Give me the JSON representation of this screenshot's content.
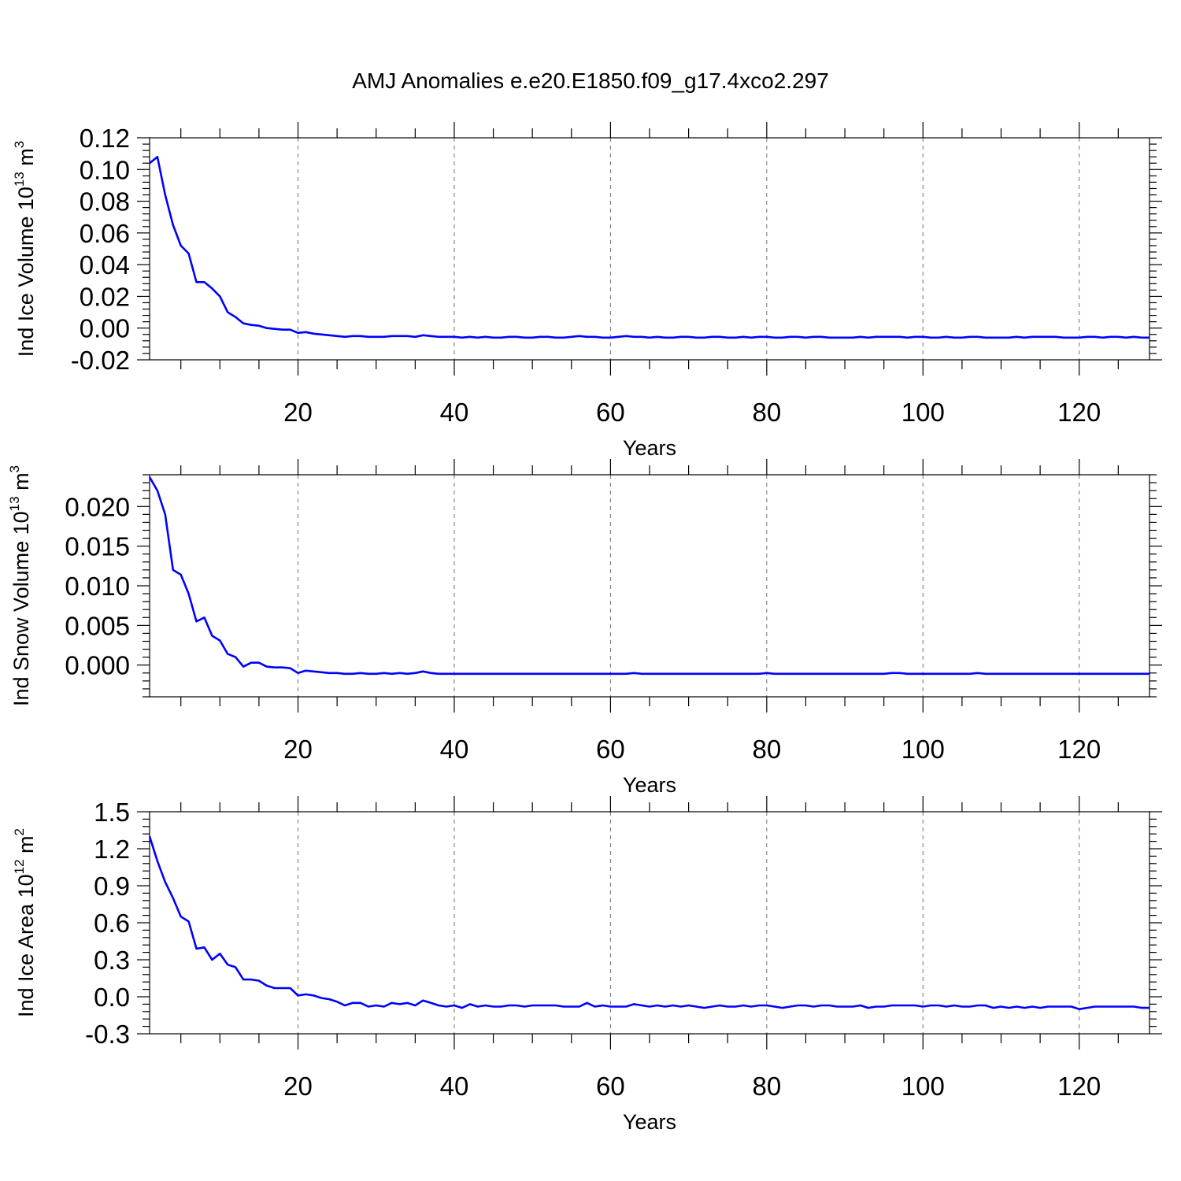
{
  "title": "AMJ Anomalies e.e20.E1850.f09_g17.4xco2.297",
  "chart_data": [
    {
      "type": "line",
      "ylabel": {
        "prefix": "Ind Ice Volume 10",
        "exp": "13",
        "unit": " m",
        "unit_exp": "3"
      },
      "xlabel": "Years",
      "xlim": [
        1,
        129
      ],
      "ylim": [
        -0.02,
        0.12
      ],
      "xticks": [
        20,
        40,
        60,
        80,
        100,
        120
      ],
      "xtick_labels": [
        "20",
        "40",
        "60",
        "80",
        "100",
        "120"
      ],
      "yticks": [
        -0.02,
        0.0,
        0.02,
        0.04,
        0.06,
        0.08,
        0.1,
        0.12
      ],
      "ytick_labels": [
        "-0.02",
        "0.00",
        "0.02",
        "0.04",
        "0.06",
        "0.08",
        "0.10",
        "0.12"
      ],
      "grid_x": true,
      "series": [
        {
          "color": "#0000ff",
          "x_start": 1,
          "values": [
            0.104,
            0.108,
            0.084,
            0.065,
            0.052,
            0.047,
            0.029,
            0.029,
            0.025,
            0.02,
            0.01,
            0.007,
            0.003,
            0.002,
            0.0015,
            0.0,
            -0.0005,
            -0.001,
            -0.001,
            -0.003,
            -0.0025,
            -0.0035,
            -0.004,
            -0.0045,
            -0.005,
            -0.0055,
            -0.005,
            -0.005,
            -0.0055,
            -0.0055,
            -0.0055,
            -0.005,
            -0.005,
            -0.005,
            -0.0055,
            -0.0045,
            -0.005,
            -0.0055,
            -0.0055,
            -0.0055,
            -0.006,
            -0.0055,
            -0.006,
            -0.0055,
            -0.006,
            -0.006,
            -0.0055,
            -0.0055,
            -0.006,
            -0.006,
            -0.0055,
            -0.0055,
            -0.006,
            -0.006,
            -0.0055,
            -0.005,
            -0.0055,
            -0.0055,
            -0.006,
            -0.006,
            -0.0055,
            -0.005,
            -0.0055,
            -0.0055,
            -0.006,
            -0.0055,
            -0.006,
            -0.006,
            -0.0055,
            -0.0055,
            -0.006,
            -0.006,
            -0.0055,
            -0.0055,
            -0.006,
            -0.006,
            -0.0055,
            -0.006,
            -0.0055,
            -0.0055,
            -0.006,
            -0.006,
            -0.0055,
            -0.0055,
            -0.006,
            -0.0055,
            -0.0055,
            -0.006,
            -0.006,
            -0.006,
            -0.006,
            -0.0055,
            -0.006,
            -0.0055,
            -0.0055,
            -0.0055,
            -0.0055,
            -0.006,
            -0.0055,
            -0.0055,
            -0.006,
            -0.006,
            -0.0055,
            -0.006,
            -0.006,
            -0.0055,
            -0.0055,
            -0.006,
            -0.006,
            -0.006,
            -0.006,
            -0.0055,
            -0.006,
            -0.0055,
            -0.0055,
            -0.0055,
            -0.0055,
            -0.006,
            -0.006,
            -0.006,
            -0.0055,
            -0.0055,
            -0.006,
            -0.0055,
            -0.0055,
            -0.006,
            -0.0055,
            -0.006,
            -0.006
          ]
        }
      ]
    },
    {
      "type": "line",
      "ylabel": {
        "prefix": "Ind Snow Volume 10",
        "exp": "13",
        "unit": " m",
        "unit_exp": "3"
      },
      "xlabel": "Years",
      "xlim": [
        1,
        129
      ],
      "ylim": [
        -0.004,
        0.024
      ],
      "xticks": [
        20,
        40,
        60,
        80,
        100,
        120
      ],
      "xtick_labels": [
        "20",
        "40",
        "60",
        "80",
        "100",
        "120"
      ],
      "yticks": [
        0.0,
        0.005,
        0.01,
        0.015,
        0.02
      ],
      "ytick_labels": [
        "0.000",
        "0.005",
        "0.010",
        "0.015",
        "0.020"
      ],
      "grid_x": true,
      "series": [
        {
          "color": "#0000ff",
          "x_start": 1,
          "values": [
            0.0237,
            0.022,
            0.019,
            0.012,
            0.0114,
            0.009,
            0.0055,
            0.006,
            0.0037,
            0.0031,
            0.0014,
            0.001,
            -0.0002,
            0.0003,
            0.0003,
            -0.0002,
            -0.0003,
            -0.0003,
            -0.0004,
            -0.001,
            -0.0007,
            -0.0008,
            -0.0009,
            -0.001,
            -0.001,
            -0.0011,
            -0.0011,
            -0.001,
            -0.0011,
            -0.0011,
            -0.001,
            -0.0011,
            -0.001,
            -0.0011,
            -0.001,
            -0.0008,
            -0.001,
            -0.0011,
            -0.0011,
            -0.0011,
            -0.0011,
            -0.0011,
            -0.0011,
            -0.0011,
            -0.0011,
            -0.0011,
            -0.0011,
            -0.0011,
            -0.0011,
            -0.0011,
            -0.0011,
            -0.0011,
            -0.0011,
            -0.0011,
            -0.0011,
            -0.0011,
            -0.0011,
            -0.0011,
            -0.0011,
            -0.0011,
            -0.0011,
            -0.0011,
            -0.001,
            -0.0011,
            -0.0011,
            -0.0011,
            -0.0011,
            -0.0011,
            -0.0011,
            -0.0011,
            -0.0011,
            -0.0011,
            -0.0011,
            -0.0011,
            -0.0011,
            -0.0011,
            -0.0011,
            -0.0011,
            -0.0011,
            -0.001,
            -0.0011,
            -0.0011,
            -0.0011,
            -0.0011,
            -0.0011,
            -0.0011,
            -0.0011,
            -0.0011,
            -0.0011,
            -0.0011,
            -0.0011,
            -0.0011,
            -0.0011,
            -0.0011,
            -0.0011,
            -0.001,
            -0.001,
            -0.0011,
            -0.0011,
            -0.0011,
            -0.0011,
            -0.0011,
            -0.0011,
            -0.0011,
            -0.0011,
            -0.0011,
            -0.001,
            -0.0011,
            -0.0011,
            -0.0011,
            -0.0011,
            -0.0011,
            -0.0011,
            -0.0011,
            -0.0011,
            -0.0011,
            -0.0011,
            -0.0011,
            -0.0011,
            -0.0011,
            -0.0011,
            -0.0011,
            -0.0011,
            -0.0011,
            -0.0011,
            -0.0011,
            -0.0011,
            -0.0011,
            -0.0011
          ]
        }
      ]
    },
    {
      "type": "line",
      "ylabel": {
        "prefix": "Ind Ice Area 10",
        "exp": "12",
        "unit": " m",
        "unit_exp": "2"
      },
      "xlabel": "Years",
      "xlim": [
        1,
        129
      ],
      "ylim": [
        -0.3,
        1.5
      ],
      "xticks": [
        20,
        40,
        60,
        80,
        100,
        120
      ],
      "xtick_labels": [
        "20",
        "40",
        "60",
        "80",
        "100",
        "120"
      ],
      "yticks": [
        -0.3,
        0.0,
        0.3,
        0.6,
        0.9,
        1.2,
        1.5
      ],
      "ytick_labels": [
        "-0.3",
        "0.0",
        "0.3",
        "0.6",
        "0.9",
        "1.2",
        "1.5"
      ],
      "grid_x": true,
      "series": [
        {
          "color": "#0000ff",
          "x_start": 1,
          "values": [
            1.3,
            1.1,
            0.93,
            0.8,
            0.65,
            0.61,
            0.39,
            0.4,
            0.3,
            0.35,
            0.26,
            0.24,
            0.14,
            0.14,
            0.13,
            0.09,
            0.07,
            0.07,
            0.07,
            0.01,
            0.02,
            0.01,
            -0.01,
            -0.02,
            -0.04,
            -0.07,
            -0.05,
            -0.05,
            -0.08,
            -0.07,
            -0.08,
            -0.05,
            -0.06,
            -0.05,
            -0.07,
            -0.03,
            -0.05,
            -0.07,
            -0.08,
            -0.07,
            -0.09,
            -0.06,
            -0.08,
            -0.07,
            -0.08,
            -0.08,
            -0.07,
            -0.07,
            -0.08,
            -0.07,
            -0.07,
            -0.07,
            -0.07,
            -0.08,
            -0.08,
            -0.08,
            -0.05,
            -0.08,
            -0.07,
            -0.08,
            -0.08,
            -0.08,
            -0.06,
            -0.07,
            -0.08,
            -0.07,
            -0.08,
            -0.07,
            -0.08,
            -0.07,
            -0.08,
            -0.09,
            -0.08,
            -0.07,
            -0.08,
            -0.08,
            -0.07,
            -0.08,
            -0.07,
            -0.07,
            -0.08,
            -0.09,
            -0.08,
            -0.07,
            -0.07,
            -0.08,
            -0.07,
            -0.07,
            -0.08,
            -0.08,
            -0.08,
            -0.07,
            -0.09,
            -0.08,
            -0.08,
            -0.07,
            -0.07,
            -0.07,
            -0.07,
            -0.08,
            -0.07,
            -0.07,
            -0.08,
            -0.07,
            -0.08,
            -0.08,
            -0.07,
            -0.07,
            -0.09,
            -0.08,
            -0.09,
            -0.08,
            -0.09,
            -0.08,
            -0.09,
            -0.08,
            -0.08,
            -0.08,
            -0.08,
            -0.1,
            -0.09,
            -0.08,
            -0.08,
            -0.08,
            -0.08,
            -0.08,
            -0.08,
            -0.09,
            -0.09
          ]
        }
      ]
    }
  ]
}
